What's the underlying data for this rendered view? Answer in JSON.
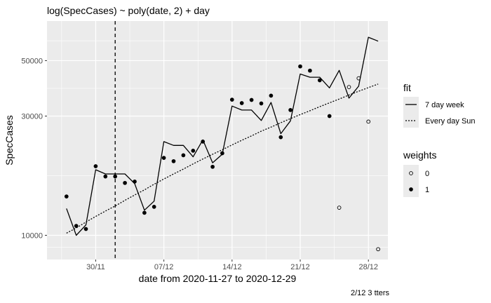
{
  "chart_data": {
    "type": "line",
    "title": "log(SpecCases) ~ poly(date, 2) + day",
    "xlabel": "date from 2020-11-27 to 2020-12-29",
    "ylabel": "SpecCases",
    "caption": "2/12 3 tters",
    "y_scale": "log",
    "x_ticks": [
      {
        "date": "2020-11-30",
        "label": "30/11"
      },
      {
        "date": "2020-12-07",
        "label": "07/12"
      },
      {
        "date": "2020-12-14",
        "label": "14/12"
      },
      {
        "date": "2020-12-21",
        "label": "21/12"
      },
      {
        "date": "2020-12-28",
        "label": "28/12"
      }
    ],
    "y_ticks": [
      {
        "value": 10000,
        "label": "10000"
      },
      {
        "value": 30000,
        "label": "30000"
      },
      {
        "value": 50000,
        "label": "50000"
      }
    ],
    "x_range": [
      "2020-11-25",
      "2020-12-30"
    ],
    "y_range": [
      8000,
      72000
    ],
    "grid": true,
    "vline_date": "2020-12-02",
    "dates": [
      "2020-11-27",
      "2020-11-28",
      "2020-11-29",
      "2020-11-30",
      "2020-12-01",
      "2020-12-02",
      "2020-12-03",
      "2020-12-04",
      "2020-12-05",
      "2020-12-06",
      "2020-12-07",
      "2020-12-08",
      "2020-12-09",
      "2020-12-10",
      "2020-12-11",
      "2020-12-12",
      "2020-12-13",
      "2020-12-14",
      "2020-12-15",
      "2020-12-16",
      "2020-12-17",
      "2020-12-18",
      "2020-12-19",
      "2020-12-20",
      "2020-12-21",
      "2020-12-22",
      "2020-12-23",
      "2020-12-24",
      "2020-12-25",
      "2020-12-26",
      "2020-12-27",
      "2020-12-28",
      "2020-12-29"
    ],
    "observed": [
      14300,
      10900,
      10600,
      18900,
      17200,
      17200,
      16200,
      16400,
      12300,
      13000,
      20400,
      19800,
      20900,
      21800,
      23700,
      18800,
      21300,
      34900,
      33800,
      34800,
      33700,
      36200,
      24700,
      31700,
      47400,
      45600,
      41700,
      30000,
      12900,
      39200,
      42500,
      28500,
      8800
    ],
    "weights": [
      1,
      1,
      1,
      1,
      1,
      1,
      1,
      1,
      1,
      1,
      1,
      1,
      1,
      1,
      1,
      1,
      1,
      1,
      1,
      1,
      1,
      1,
      1,
      1,
      1,
      1,
      1,
      1,
      0,
      0,
      0,
      0,
      0
    ],
    "series": [
      {
        "name": "7 day week",
        "style": "solid",
        "values": [
          12800,
          10000,
          11000,
          18300,
          17600,
          17600,
          17600,
          16100,
          12600,
          13700,
          23700,
          22900,
          22900,
          20600,
          24100,
          19500,
          21100,
          32900,
          31700,
          31700,
          28800,
          34000,
          25500,
          28700,
          44200,
          42900,
          42900,
          38900,
          45700,
          35400,
          39500,
          62000,
          59800
        ]
      },
      {
        "name": "Every day Sun",
        "style": "dashed",
        "values": [
          10200,
          10700,
          11300,
          11900,
          12500,
          13100,
          13800,
          14500,
          15200,
          16000,
          16800,
          17600,
          18400,
          19300,
          20200,
          21100,
          22000,
          23000,
          24000,
          25000,
          26100,
          27100,
          28200,
          29300,
          30400,
          31500,
          32700,
          33900,
          35100,
          36400,
          37700,
          39000,
          40300
        ]
      }
    ],
    "legend_fit": {
      "title": "fit",
      "items": [
        {
          "label": "7 day week",
          "style": "solid"
        },
        {
          "label": "Every day Sun",
          "style": "dashed"
        }
      ]
    },
    "legend_weights": {
      "title": "weights",
      "items": [
        {
          "label": "0",
          "filled": false
        },
        {
          "label": "1",
          "filled": true
        }
      ]
    }
  }
}
